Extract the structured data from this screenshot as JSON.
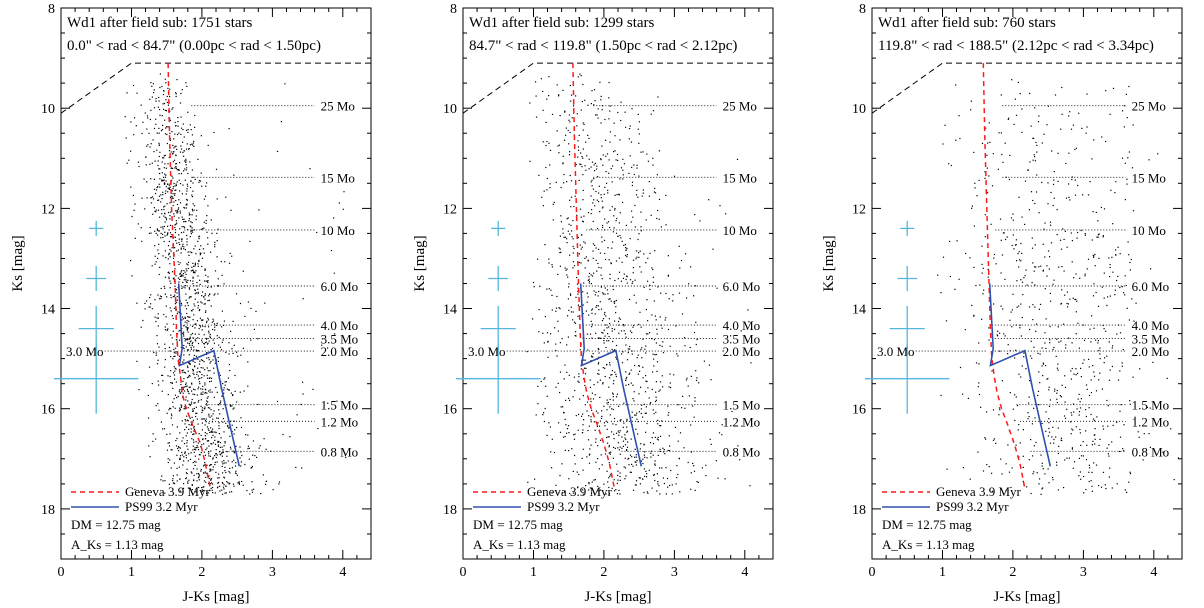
{
  "chart_data": [
    {
      "type": "scatter",
      "panel_title": "Wd1 after field sub: 1751 stars",
      "panel_subtitle": "0.0\" < rad < 84.7\" (0.00pc < rad < 1.50pc)",
      "xlabel": "J-Ks [mag]",
      "ylabel": "Ks [mag]",
      "xlim": [
        0,
        4.4
      ],
      "ylim": [
        19,
        8
      ],
      "x_ticks": [
        "0",
        "1",
        "2",
        "3",
        "4"
      ],
      "y_ticks": [
        "8",
        "10",
        "12",
        "14",
        "16",
        "18"
      ],
      "n_stars": 1751,
      "geneva_x": [
        1.52,
        1.54,
        1.57,
        1.62,
        1.64,
        1.66,
        1.7,
        1.72,
        1.78,
        1.86,
        1.98,
        2.05,
        2.12
      ],
      "geneva_y": [
        9.1,
        10.5,
        12.0,
        13.5,
        14.4,
        15.0,
        15.4,
        15.7,
        16.0,
        16.3,
        16.7,
        17.1,
        17.6
      ],
      "ps99_x": [
        1.67,
        1.72,
        1.68,
        2.17,
        2.28,
        2.53
      ],
      "ps99_y": [
        13.5,
        14.8,
        15.14,
        14.84,
        15.6,
        17.15
      ],
      "errorbars": [
        {
          "x": 0.5,
          "y": 12.4,
          "dx": 0.1,
          "dy": 0.15
        },
        {
          "x": 0.5,
          "y": 13.4,
          "dx": 0.14,
          "dy": 0.25
        },
        {
          "x": 0.5,
          "y": 14.4,
          "dx": 0.25,
          "dy": 0.45
        },
        {
          "x": 0.5,
          "y": 15.4,
          "dx": 0.6,
          "dy": 0.7
        }
      ]
    },
    {
      "type": "scatter",
      "panel_title": "Wd1 after field sub: 1299 stars",
      "panel_subtitle": "84.7\" < rad < 119.8\" (1.50pc < rad < 2.12pc)",
      "xlabel": "J-Ks [mag]",
      "ylabel": "Ks [mag]",
      "xlim": [
        0,
        4.4
      ],
      "ylim": [
        19,
        8
      ],
      "x_ticks": [
        "0",
        "1",
        "2",
        "3",
        "4"
      ],
      "y_ticks": [
        "8",
        "10",
        "12",
        "14",
        "16",
        "18"
      ],
      "n_stars": 1299,
      "geneva_x": [
        1.56,
        1.58,
        1.61,
        1.64,
        1.66,
        1.68,
        1.72,
        1.76,
        1.82,
        1.9,
        2.0,
        2.08,
        2.15
      ],
      "geneva_y": [
        9.1,
        10.5,
        12.0,
        13.5,
        14.4,
        15.0,
        15.4,
        15.7,
        16.0,
        16.3,
        16.7,
        17.1,
        17.6
      ],
      "ps99_x": [
        1.67,
        1.72,
        1.68,
        2.17,
        2.28,
        2.53
      ],
      "ps99_y": [
        13.5,
        14.8,
        15.14,
        14.84,
        15.6,
        17.15
      ],
      "errorbars": [
        {
          "x": 0.5,
          "y": 12.4,
          "dx": 0.1,
          "dy": 0.15
        },
        {
          "x": 0.5,
          "y": 13.4,
          "dx": 0.14,
          "dy": 0.25
        },
        {
          "x": 0.5,
          "y": 14.4,
          "dx": 0.25,
          "dy": 0.45
        },
        {
          "x": 0.5,
          "y": 15.4,
          "dx": 0.6,
          "dy": 0.7
        }
      ]
    },
    {
      "type": "scatter",
      "panel_title": "Wd1 after field sub: 760 stars",
      "panel_subtitle": "119.8\" < rad < 188.5\" (2.12pc < rad < 3.34pc)",
      "xlabel": "J-Ks [mag]",
      "ylabel": "Ks [mag]",
      "xlim": [
        0,
        4.4
      ],
      "ylim": [
        19,
        8
      ],
      "x_ticks": [
        "0",
        "1",
        "2",
        "3",
        "4"
      ],
      "y_ticks": [
        "8",
        "10",
        "12",
        "14",
        "16",
        "18"
      ],
      "n_stars": 760,
      "geneva_x": [
        1.58,
        1.6,
        1.63,
        1.66,
        1.68,
        1.7,
        1.74,
        1.78,
        1.84,
        1.92,
        2.02,
        2.1,
        2.17
      ],
      "geneva_y": [
        9.1,
        10.5,
        12.0,
        13.5,
        14.4,
        15.0,
        15.4,
        15.7,
        16.0,
        16.3,
        16.7,
        17.1,
        17.6
      ],
      "ps99_x": [
        1.67,
        1.72,
        1.68,
        2.17,
        2.28,
        2.53
      ],
      "ps99_y": [
        13.5,
        14.8,
        15.14,
        14.84,
        15.6,
        17.15
      ],
      "errorbars": [
        {
          "x": 0.5,
          "y": 12.4,
          "dx": 0.1,
          "dy": 0.15
        },
        {
          "x": 0.5,
          "y": 13.4,
          "dx": 0.14,
          "dy": 0.25
        },
        {
          "x": 0.5,
          "y": 14.4,
          "dx": 0.25,
          "dy": 0.45
        },
        {
          "x": 0.5,
          "y": 15.4,
          "dx": 0.6,
          "dy": 0.7
        }
      ]
    }
  ],
  "mass_lines": [
    {
      "label": "25 Mo",
      "y": 9.95,
      "x0": 1.85,
      "x1": 3.6
    },
    {
      "label": "15 Mo",
      "y": 11.38,
      "x0": 1.85,
      "x1": 3.6
    },
    {
      "label": "10 Mo",
      "y": 12.43,
      "x0": 1.75,
      "x1": 3.6
    },
    {
      "label": "6.0 Mo",
      "y": 13.55,
      "x0": 1.7,
      "x1": 3.6
    },
    {
      "label": "4.0 Mo",
      "y": 14.33,
      "x0": 1.7,
      "x1": 3.6
    },
    {
      "label": "3.5 Mo",
      "y": 14.6,
      "x0": 1.7,
      "x1": 3.6
    },
    {
      "label": "2.0 Mo",
      "y": 14.85,
      "x0": 1.7,
      "x1": 3.6
    },
    {
      "label": "1.5 Mo",
      "y": 15.92,
      "x0": 2.05,
      "x1": 3.6
    },
    {
      "label": "1.2 Mo",
      "y": 16.25,
      "x0": 2.1,
      "x1": 3.6
    },
    {
      "label": "0.8 Mo",
      "y": 16.85,
      "x0": 2.25,
      "x1": 3.6
    }
  ],
  "mass_line_3": {
    "label": "3.0 Mo",
    "y": 14.85,
    "x0": 0.62,
    "x1": 1.62
  },
  "limit_line": {
    "x": [
      0,
      1.0,
      4.4
    ],
    "y": [
      10.1,
      9.1,
      9.1
    ]
  },
  "legend": {
    "geneva": "Geneva 3.9 Myr",
    "ps99": "PS99 3.2 Myr",
    "dm": "DM = 12.75 mag",
    "aks": "A_Ks = 1.13 mag"
  },
  "colors": {
    "geneva": "#ff1a1a",
    "ps99": "#3050b0",
    "errorbar": "#55b7dd",
    "points": "#000000",
    "limit": "#000000"
  }
}
